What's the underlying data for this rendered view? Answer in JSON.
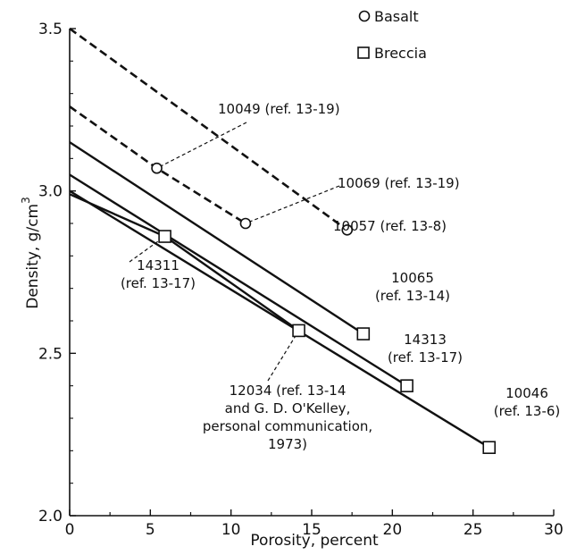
{
  "chart_data": {
    "type": "line",
    "xlabel": "Porosity, percent",
    "ylabel": "Density, g/cm",
    "ylabel_superscript": "3",
    "xlim": [
      0,
      30
    ],
    "ylim": [
      2.0,
      3.5
    ],
    "x_ticks": [
      "0",
      "5",
      "10",
      "15",
      "20",
      "25",
      "30"
    ],
    "y_ticks": [
      "2.0",
      "2.5",
      "3.0",
      "3.5"
    ],
    "grid": false,
    "legend_position": "top-right",
    "legend": [
      {
        "name": "Basalt",
        "marker": "circle"
      },
      {
        "name": "Breccia",
        "marker": "square"
      }
    ],
    "series": [
      {
        "group": "Basalt",
        "style": "dashed",
        "marker": "circle",
        "x": [
          0,
          17.2
        ],
        "y": [
          3.5,
          2.88
        ]
      },
      {
        "group": "Basalt",
        "style": "dashed",
        "marker": "circle",
        "x": [
          0,
          5.4,
          10.9
        ],
        "y": [
          3.26,
          3.07,
          2.9
        ]
      },
      {
        "group": "Breccia",
        "style": "solid",
        "marker": "square",
        "x": [
          0,
          18.2
        ],
        "y": [
          3.15,
          2.56
        ]
      },
      {
        "group": "Breccia",
        "style": "solid",
        "marker": "square",
        "x": [
          0,
          20.9
        ],
        "y": [
          3.05,
          2.4
        ]
      },
      {
        "group": "Breccia",
        "style": "solid",
        "marker": "square",
        "x": [
          0,
          26.0
        ],
        "y": [
          3.0,
          2.21
        ]
      },
      {
        "group": "Breccia",
        "style": "solid",
        "marker": "square",
        "x": [
          0,
          5.9,
          14.2
        ],
        "y": [
          2.99,
          2.86,
          2.57
        ]
      }
    ],
    "annotations": [
      {
        "lines": [
          "10049 (ref. 13-19)"
        ],
        "target": [
          5.4,
          3.07
        ],
        "leader": true
      },
      {
        "lines": [
          "10069 (ref. 13-19)"
        ],
        "target": [
          10.9,
          2.9
        ],
        "leader": true
      },
      {
        "lines": [
          "10057 (ref. 13-8)"
        ],
        "target": [
          17.2,
          2.88
        ],
        "leader": false
      },
      {
        "lines": [
          "14311",
          "(ref. 13-17)"
        ],
        "target": [
          5.9,
          2.86
        ],
        "leader": true
      },
      {
        "lines": [
          "10065",
          "(ref. 13-14)"
        ],
        "target": [
          18.2,
          2.56
        ],
        "leader": false
      },
      {
        "lines": [
          "14313",
          "(ref. 13-17)"
        ],
        "target": [
          20.9,
          2.4
        ],
        "leader": false
      },
      {
        "lines": [
          "10046",
          "(ref. 13-6)"
        ],
        "target": [
          26.0,
          2.21
        ],
        "leader": false
      },
      {
        "lines": [
          "12034 (ref. 13-14",
          "and G. D. O'Kelley,",
          "personal communication,",
          "1973)"
        ],
        "target": [
          14.2,
          2.57
        ],
        "leader": true
      }
    ]
  }
}
